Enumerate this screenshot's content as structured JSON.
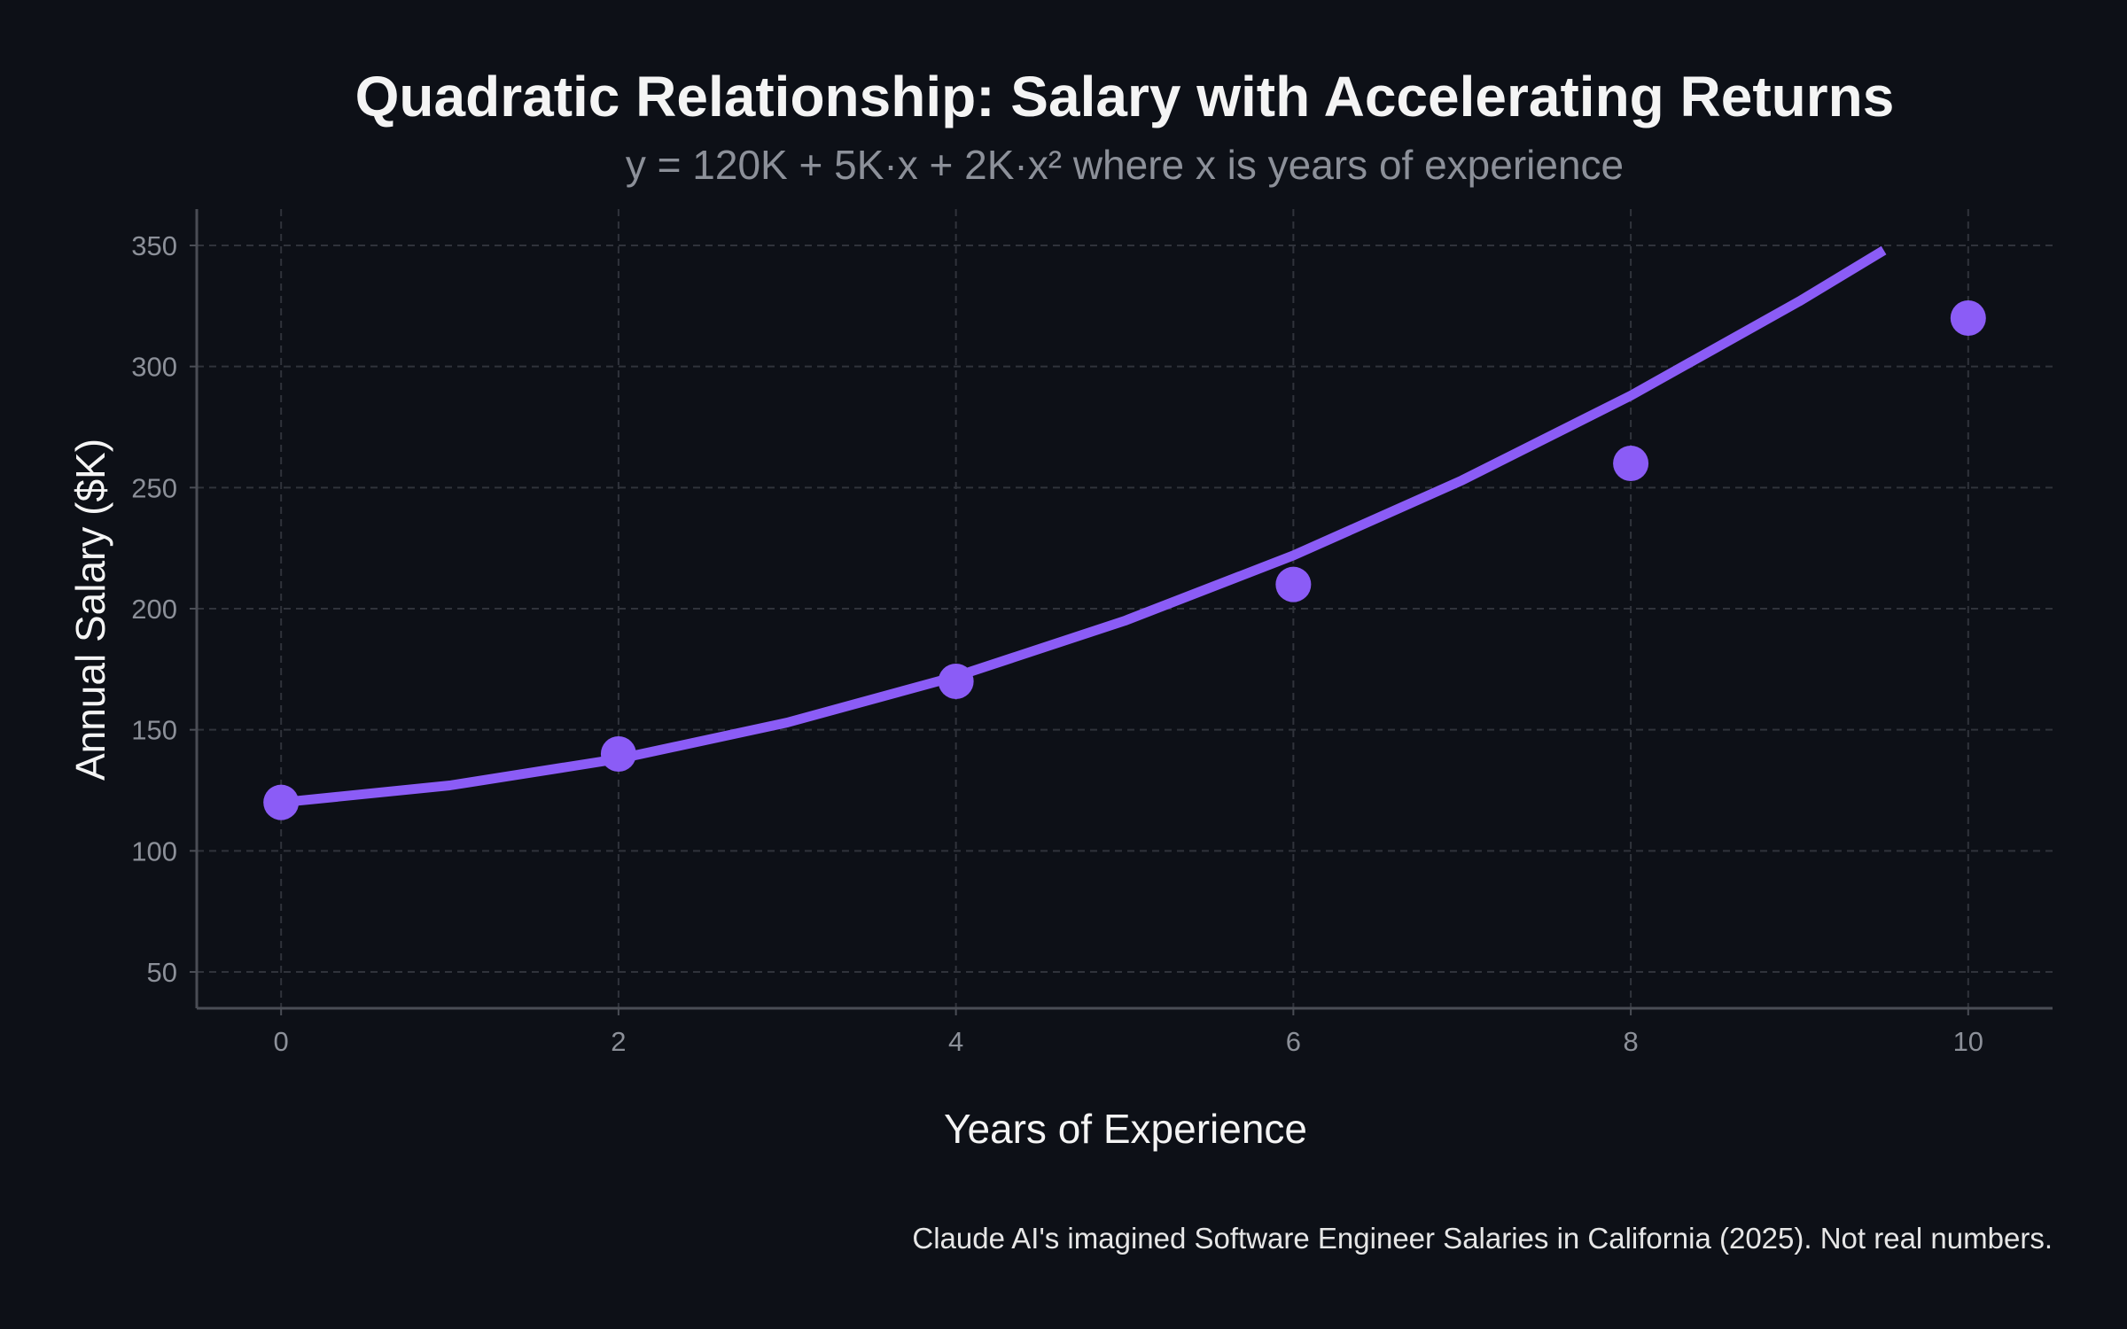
{
  "chart_data": {
    "type": "scatter",
    "title": "Quadratic Relationship: Salary with Accelerating Returns",
    "subtitle": "y = 120K + 5K·x + 2K·x² where x is years of experience",
    "xlabel": "Years of Experience",
    "ylabel": "Annual Salary ($K)",
    "xlim": [
      -0.5,
      10.5
    ],
    "ylim": [
      35,
      365
    ],
    "xticks": [
      0,
      2,
      4,
      6,
      8,
      10
    ],
    "yticks": [
      50,
      100,
      150,
      200,
      250,
      300,
      350
    ],
    "grid": true,
    "series": [
      {
        "kind": "points",
        "color": "#8b5cf6",
        "x": [
          0,
          2,
          4,
          6,
          8,
          10
        ],
        "y": [
          120,
          140,
          170,
          210,
          260,
          320
        ]
      },
      {
        "kind": "curve",
        "color": "#8b5cf6",
        "x": [
          0,
          1,
          2,
          3,
          4,
          5,
          6,
          7,
          8,
          9,
          9.5
        ],
        "y": [
          120,
          127,
          138,
          153,
          172,
          195,
          222,
          253,
          288,
          327,
          348
        ]
      }
    ],
    "footnote": "Claude AI's imagined Software Engineer Salaries in California (2025). Not real numbers."
  }
}
